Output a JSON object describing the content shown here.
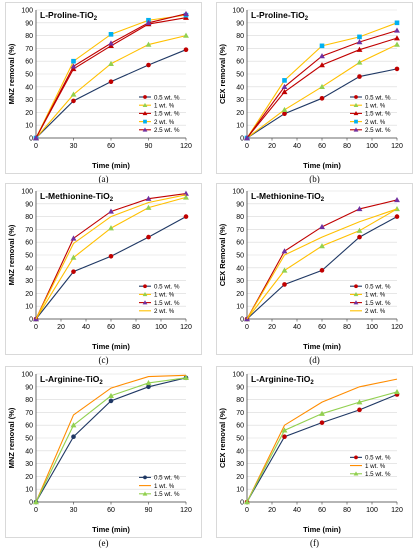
{
  "figure": {
    "panels": [
      {
        "caption": "(a)"
      },
      {
        "caption": "(b)"
      },
      {
        "caption": "(c)"
      },
      {
        "caption": "(d)"
      },
      {
        "caption": "(e)"
      },
      {
        "caption": "(f)"
      }
    ]
  },
  "colors": {
    "0.5 wt. %": "#c00000",
    "1 wt. %": "#92d050",
    "1.5 wt. %": "#c00000",
    "2 wt. %": "#ffc000",
    "2.5 wt. %": "#7030a0",
    "navy_line": "#1f3864",
    "orange_line": "#ff8c00",
    "blue_marker": "#00b0f0"
  },
  "chart_data": [
    {
      "type": "line",
      "title": "L-Proline-TiO2",
      "xlabel": "Time (min)",
      "ylabel": "MNZ removal (%)",
      "xlim": [
        0,
        120
      ],
      "ylim": [
        0,
        100
      ],
      "xticks": [
        0,
        30,
        60,
        90,
        120
      ],
      "yticks": [
        0,
        10,
        20,
        30,
        40,
        50,
        60,
        70,
        80,
        90,
        100
      ],
      "legend_position": "bottom-right",
      "series": [
        {
          "name": "0.5 wt. %",
          "x": [
            0,
            30,
            60,
            90,
            120
          ],
          "values": [
            0,
            29,
            44,
            57,
            69
          ]
        },
        {
          "name": "1 wt. %",
          "x": [
            0,
            30,
            60,
            90,
            120
          ],
          "values": [
            0,
            34,
            58,
            73,
            80
          ]
        },
        {
          "name": "1.5 wt. %",
          "x": [
            0,
            30,
            60,
            90,
            120
          ],
          "values": [
            0,
            54,
            72,
            89,
            94
          ]
        },
        {
          "name": "2 wt. %",
          "x": [
            0,
            30,
            60,
            90,
            120
          ],
          "values": [
            0,
            60,
            81,
            92,
            96
          ]
        },
        {
          "name": "2.5 wt. %",
          "x": [
            0,
            30,
            60,
            90,
            120
          ],
          "values": [
            0,
            56,
            74,
            90,
            97
          ]
        }
      ]
    },
    {
      "type": "line",
      "title": "L-Proline-TiO2",
      "xlabel": "Time (min)",
      "ylabel": "CEX removal (%)",
      "xlim": [
        0,
        120
      ],
      "ylim": [
        0,
        100
      ],
      "xticks": [
        0,
        20,
        40,
        60,
        80,
        100,
        120
      ],
      "yticks": [
        0,
        10,
        20,
        30,
        40,
        50,
        60,
        70,
        80,
        90,
        100
      ],
      "legend_position": "bottom-right",
      "series": [
        {
          "name": "0.5 wt. %",
          "x": [
            0,
            30,
            60,
            90,
            120
          ],
          "values": [
            0,
            19,
            31,
            48,
            54
          ]
        },
        {
          "name": "1 wt. %",
          "x": [
            0,
            30,
            60,
            90,
            120
          ],
          "values": [
            0,
            22,
            40,
            59,
            73
          ]
        },
        {
          "name": "1.5 wt. %",
          "x": [
            0,
            30,
            60,
            90,
            120
          ],
          "values": [
            0,
            36,
            57,
            69,
            78
          ]
        },
        {
          "name": "2 wt. %",
          "x": [
            0,
            30,
            60,
            90,
            120
          ],
          "values": [
            0,
            45,
            72,
            79,
            90
          ]
        },
        {
          "name": "2.5 wt. %",
          "x": [
            0,
            30,
            60,
            90,
            120
          ],
          "values": [
            0,
            40,
            64,
            75,
            84
          ]
        }
      ]
    },
    {
      "type": "line",
      "title": "L-Methionine-TiO2",
      "xlabel": "Time (min)",
      "ylabel": "MNZ removal (%)",
      "xlim": [
        0,
        120
      ],
      "ylim": [
        0,
        100
      ],
      "xticks": [
        0,
        20,
        40,
        60,
        80,
        100,
        120
      ],
      "yticks": [
        0,
        10,
        20,
        30,
        40,
        50,
        60,
        70,
        80,
        90,
        100
      ],
      "legend_position": "bottom-right",
      "series": [
        {
          "name": "0.5 wt. %",
          "x": [
            0,
            30,
            60,
            90,
            120
          ],
          "values": [
            0,
            37,
            49,
            64,
            80
          ]
        },
        {
          "name": "1 wt. %",
          "x": [
            0,
            30,
            60,
            90,
            120
          ],
          "values": [
            0,
            48,
            71,
            87,
            95
          ]
        },
        {
          "name": "1.5 wt. %",
          "x": [
            0,
            30,
            60,
            90,
            120
          ],
          "values": [
            0,
            63,
            84,
            94,
            98
          ]
        },
        {
          "name": "2 wt. %",
          "x": [
            0,
            30,
            60,
            90,
            120
          ],
          "values": [
            0,
            59,
            80,
            91,
            97
          ]
        }
      ]
    },
    {
      "type": "line",
      "title": "L-Methionine-TiO2",
      "xlabel": "Time (min)",
      "ylabel": "CEX Removal (%)",
      "xlim": [
        0,
        120
      ],
      "ylim": [
        0,
        100
      ],
      "xticks": [
        0,
        20,
        40,
        60,
        80,
        100,
        120
      ],
      "yticks": [
        0,
        10,
        20,
        30,
        40,
        50,
        60,
        70,
        80,
        90,
        100
      ],
      "legend_position": "bottom-right",
      "series": [
        {
          "name": "0.5 wt. %",
          "x": [
            0,
            30,
            60,
            90,
            120
          ],
          "values": [
            0,
            27,
            38,
            64,
            80
          ]
        },
        {
          "name": "1 wt. %",
          "x": [
            0,
            30,
            60,
            90,
            120
          ],
          "values": [
            0,
            38,
            57,
            69,
            86
          ]
        },
        {
          "name": "1.5 wt. %",
          "x": [
            0,
            30,
            60,
            90,
            120
          ],
          "values": [
            0,
            53,
            72,
            86,
            93
          ]
        },
        {
          "name": "2 wt. %",
          "x": [
            0,
            30,
            60,
            90,
            120
          ],
          "values": [
            0,
            50,
            64,
            76,
            86
          ]
        }
      ]
    },
    {
      "type": "line",
      "title": "L-Arginine-TiO2",
      "xlabel": "Time (min)",
      "ylabel": "MNZ removal (%)",
      "xlim": [
        0,
        120
      ],
      "ylim": [
        0,
        100
      ],
      "xticks": [
        0,
        30,
        60,
        90,
        120
      ],
      "yticks": [
        0,
        10,
        20,
        30,
        40,
        50,
        60,
        70,
        80,
        90,
        100
      ],
      "legend_position": "bottom-right",
      "series": [
        {
          "name": "0.5 wt. %",
          "x": [
            0,
            30,
            60,
            90,
            120
          ],
          "values": [
            0,
            51,
            79,
            90,
            97
          ]
        },
        {
          "name": "1 wt. %",
          "x": [
            0,
            30,
            60,
            90,
            120
          ],
          "values": [
            0,
            68,
            89,
            98,
            99
          ]
        },
        {
          "name": "1.5 wt. %",
          "x": [
            0,
            30,
            60,
            90,
            120
          ],
          "values": [
            0,
            60,
            83,
            93,
            97
          ]
        }
      ]
    },
    {
      "type": "line",
      "title": "L-Arginine-TiO2",
      "xlabel": "Time (min)",
      "ylabel": "CEX removal (%)",
      "xlim": [
        0,
        120
      ],
      "ylim": [
        0,
        100
      ],
      "xticks": [
        0,
        20,
        40,
        60,
        80,
        100,
        120
      ],
      "yticks": [
        0,
        10,
        20,
        30,
        40,
        50,
        60,
        70,
        80,
        90,
        100
      ],
      "legend_position": "right",
      "series": [
        {
          "name": "0.5 wt. %",
          "x": [
            0,
            30,
            60,
            90,
            120
          ],
          "values": [
            0,
            51,
            62,
            72,
            84
          ]
        },
        {
          "name": "1 wt. %",
          "x": [
            0,
            30,
            60,
            90,
            120
          ],
          "values": [
            0,
            60,
            78,
            90,
            96
          ]
        },
        {
          "name": "1.5 wt. %",
          "x": [
            0,
            30,
            60,
            90,
            120
          ],
          "values": [
            0,
            56,
            69,
            78,
            86
          ]
        }
      ]
    }
  ]
}
